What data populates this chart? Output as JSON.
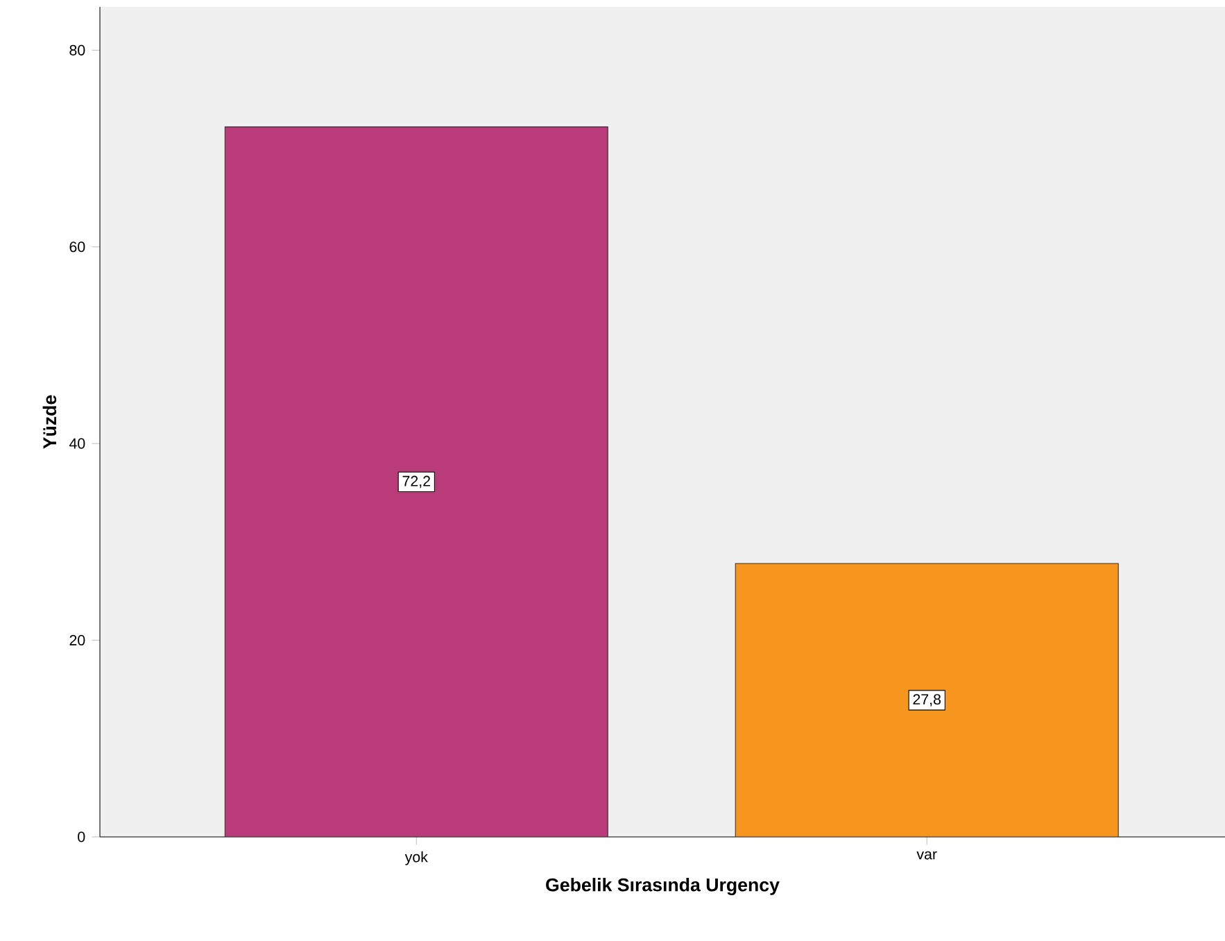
{
  "chart_data": {
    "type": "bar",
    "categories": [
      "yok",
      "var"
    ],
    "values": [
      72.2,
      27.8
    ],
    "value_labels": [
      "72,2",
      "27,8"
    ],
    "colors": [
      "#b93b7a",
      "#f7961e"
    ],
    "xlabel": "Gebelik Sırasında Urgency",
    "ylabel": "Yüzde",
    "ylim": [
      0,
      84.4
    ],
    "yticks": [
      0,
      20,
      40,
      60,
      80
    ]
  }
}
